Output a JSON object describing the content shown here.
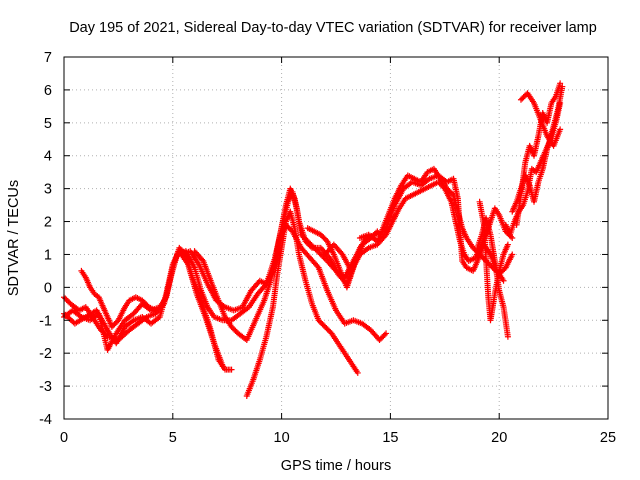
{
  "chart_data": {
    "type": "scatter",
    "title": "Day 195 of 2021, Sidereal Day-to-day VTEC variation (SDTVAR) for receiver lamp",
    "xlabel": "GPS time / hours",
    "ylabel": "SDTVAR / TECUs",
    "xlim": [
      0,
      25
    ],
    "ylim": [
      -4,
      7
    ],
    "xticks": [
      "0",
      "5",
      "10",
      "15",
      "20",
      "25"
    ],
    "yticks": [
      "-4",
      "-3",
      "-2",
      "-1",
      "0",
      "1",
      "2",
      "3",
      "4",
      "5",
      "6",
      "7"
    ],
    "grid": true,
    "marker": "+",
    "color": "#ff0000",
    "tracks": [
      [
        [
          0.0,
          -0.9
        ],
        [
          0.4,
          -0.7
        ],
        [
          0.8,
          -0.9
        ],
        [
          1.2,
          -1.0
        ],
        [
          1.6,
          -0.8
        ],
        [
          2.0,
          -1.9
        ],
        [
          2.4,
          -1.4
        ],
        [
          2.8,
          -1.0
        ],
        [
          3.2,
          -0.8
        ],
        [
          3.6,
          -0.5
        ],
        [
          4.0,
          -0.7
        ],
        [
          4.4,
          -0.6
        ],
        [
          4.7,
          -0.3
        ],
        [
          5.0,
          0.6
        ],
        [
          5.3,
          1.2
        ],
        [
          5.6,
          1.0
        ],
        [
          5.9,
          0.3
        ],
        [
          6.3,
          -0.4
        ],
        [
          6.7,
          -1.2
        ],
        [
          7.1,
          -2.2
        ],
        [
          7.4,
          -2.5
        ],
        [
          7.7,
          -2.5
        ]
      ],
      [
        [
          0.0,
          -0.8
        ],
        [
          0.5,
          -1.1
        ],
        [
          1.0,
          -0.9
        ],
        [
          1.5,
          -0.7
        ],
        [
          2.0,
          -1.3
        ],
        [
          2.4,
          -1.7
        ],
        [
          2.8,
          -1.2
        ],
        [
          3.2,
          -1.0
        ],
        [
          3.6,
          -0.9
        ],
        [
          4.0,
          -1.1
        ],
        [
          4.4,
          -0.9
        ],
        [
          4.7,
          -0.2
        ],
        [
          5.0,
          0.7
        ],
        [
          5.3,
          1.1
        ],
        [
          5.7,
          0.7
        ],
        [
          6.1,
          -0.2
        ],
        [
          6.5,
          -0.9
        ],
        [
          6.9,
          -1.7
        ],
        [
          7.3,
          -2.4
        ]
      ],
      [
        [
          0.0,
          -0.3
        ],
        [
          0.3,
          -0.5
        ],
        [
          0.7,
          -0.7
        ],
        [
          1.0,
          -0.6
        ],
        [
          1.3,
          -0.9
        ],
        [
          1.7,
          -1.3
        ],
        [
          2.0,
          -1.5
        ],
        [
          2.5,
          -1.6
        ],
        [
          3.0,
          -1.3
        ],
        [
          3.4,
          -1.1
        ],
        [
          3.8,
          -0.9
        ],
        [
          4.2,
          -0.8
        ],
        [
          4.6,
          -0.5
        ],
        [
          4.9,
          0.3
        ],
        [
          5.2,
          1.0
        ],
        [
          5.6,
          1.1
        ],
        [
          6.0,
          0.6
        ],
        [
          6.3,
          -0.1
        ],
        [
          6.6,
          -0.6
        ],
        [
          6.9,
          -0.9
        ],
        [
          7.3,
          -1.0
        ],
        [
          7.7,
          -1.0
        ],
        [
          8.1,
          -0.8
        ],
        [
          8.5,
          -0.6
        ],
        [
          8.9,
          -0.2
        ],
        [
          9.3,
          0.1
        ],
        [
          9.7,
          0.9
        ],
        [
          10.0,
          1.8
        ],
        [
          10.3,
          2.6
        ],
        [
          10.5,
          2.9
        ],
        [
          10.7,
          2.4
        ],
        [
          10.9,
          1.6
        ],
        [
          11.2,
          1.4
        ],
        [
          11.5,
          1.2
        ],
        [
          11.8,
          1.0
        ],
        [
          12.1,
          0.8
        ],
        [
          12.5,
          0.5
        ],
        [
          12.9,
          0.3
        ],
        [
          13.3,
          0.8
        ],
        [
          13.7,
          1.3
        ],
        [
          14.1,
          1.5
        ],
        [
          14.4,
          1.7
        ]
      ],
      [
        [
          5.4,
          1.0
        ],
        [
          5.8,
          1.1
        ],
        [
          6.2,
          0.7
        ],
        [
          6.6,
          0.1
        ],
        [
          7.0,
          -0.4
        ],
        [
          7.4,
          -0.6
        ],
        [
          7.8,
          -0.7
        ],
        [
          8.2,
          -0.6
        ],
        [
          8.6,
          -0.1
        ],
        [
          9.0,
          0.2
        ],
        [
          9.3,
          0.1
        ],
        [
          9.6,
          0.5
        ],
        [
          9.9,
          1.5
        ],
        [
          10.2,
          2.5
        ],
        [
          10.4,
          3.0
        ],
        [
          10.6,
          2.7
        ],
        [
          10.8,
          2.0
        ],
        [
          11.1,
          1.4
        ],
        [
          11.4,
          1.2
        ],
        [
          11.8,
          1.2
        ],
        [
          12.2,
          0.9
        ],
        [
          12.6,
          0.4
        ],
        [
          13.0,
          0.1
        ],
        [
          13.4,
          0.8
        ],
        [
          13.8,
          1.4
        ]
      ],
      [
        [
          6.0,
          1.1
        ],
        [
          6.4,
          0.8
        ],
        [
          6.8,
          0.1
        ],
        [
          7.1,
          -0.4
        ],
        [
          7.4,
          -0.9
        ],
        [
          7.7,
          -1.2
        ],
        [
          8.0,
          -1.4
        ],
        [
          8.4,
          -1.6
        ],
        [
          8.8,
          -1.0
        ],
        [
          9.2,
          -0.4
        ],
        [
          9.5,
          0.2
        ],
        [
          9.8,
          1.0
        ],
        [
          10.0,
          1.6
        ],
        [
          10.2,
          1.9
        ],
        [
          10.5,
          1.7
        ],
        [
          10.9,
          1.2
        ],
        [
          11.3,
          0.9
        ],
        [
          11.7,
          0.6
        ],
        [
          12.1,
          -0.1
        ],
        [
          12.5,
          -0.7
        ],
        [
          12.9,
          -1.1
        ],
        [
          13.3,
          -1.0
        ],
        [
          13.7,
          -1.1
        ],
        [
          14.1,
          -1.3
        ],
        [
          14.5,
          -1.6
        ],
        [
          14.8,
          -1.4
        ]
      ],
      [
        [
          8.4,
          -3.3
        ],
        [
          8.7,
          -2.8
        ],
        [
          9.0,
          -2.2
        ],
        [
          9.3,
          -1.5
        ],
        [
          9.6,
          -0.6
        ],
        [
          9.8,
          0.4
        ],
        [
          10.0,
          1.2
        ],
        [
          10.2,
          2.0
        ],
        [
          10.4,
          2.3
        ],
        [
          10.6,
          1.8
        ],
        [
          10.8,
          1.0
        ],
        [
          11.1,
          0.2
        ],
        [
          11.4,
          -0.5
        ],
        [
          11.7,
          -1.0
        ],
        [
          12.0,
          -1.2
        ],
        [
          12.3,
          -1.4
        ],
        [
          12.6,
          -1.7
        ],
        [
          12.9,
          -2.0
        ],
        [
          13.2,
          -2.3
        ],
        [
          13.5,
          -2.6
        ]
      ],
      [
        [
          11.2,
          1.8
        ],
        [
          11.5,
          1.7
        ],
        [
          11.8,
          1.6
        ],
        [
          12.1,
          1.4
        ],
        [
          12.4,
          1.0
        ],
        [
          12.7,
          0.5
        ],
        [
          13.0,
          0.0
        ],
        [
          13.3,
          0.6
        ],
        [
          13.6,
          1.2
        ],
        [
          13.9,
          1.5
        ],
        [
          14.3,
          1.6
        ],
        [
          14.6,
          1.7
        ],
        [
          14.9,
          2.2
        ],
        [
          15.2,
          2.7
        ],
        [
          15.5,
          3.1
        ],
        [
          15.8,
          3.4
        ],
        [
          16.1,
          3.3
        ],
        [
          16.4,
          3.2
        ],
        [
          16.7,
          3.5
        ],
        [
          17.0,
          3.6
        ],
        [
          17.3,
          3.3
        ],
        [
          17.6,
          3.0
        ],
        [
          17.9,
          2.8
        ],
        [
          18.1,
          2.3
        ],
        [
          18.3,
          1.8
        ],
        [
          18.5,
          1.5
        ],
        [
          18.8,
          1.2
        ],
        [
          19.1,
          1.0
        ],
        [
          19.4,
          0.8
        ],
        [
          19.7,
          0.6
        ],
        [
          20.0,
          0.4
        ],
        [
          20.3,
          0.6
        ],
        [
          20.6,
          1.0
        ]
      ],
      [
        [
          12.0,
          1.0
        ],
        [
          12.4,
          1.3
        ],
        [
          12.8,
          1.0
        ],
        [
          13.2,
          0.5
        ],
        [
          13.6,
          1.0
        ],
        [
          14.0,
          1.2
        ],
        [
          14.4,
          1.3
        ],
        [
          14.8,
          1.6
        ],
        [
          15.1,
          2.0
        ],
        [
          15.4,
          2.4
        ],
        [
          15.7,
          2.7
        ],
        [
          16.0,
          2.8
        ],
        [
          16.3,
          2.9
        ],
        [
          16.6,
          3.0
        ],
        [
          16.9,
          3.1
        ],
        [
          17.2,
          3.2
        ],
        [
          17.5,
          3.0
        ],
        [
          17.8,
          2.6
        ],
        [
          18.0,
          2.0
        ],
        [
          18.2,
          1.4
        ],
        [
          18.4,
          1.0
        ],
        [
          18.6,
          0.8
        ],
        [
          18.9,
          0.9
        ],
        [
          19.2,
          1.3
        ],
        [
          19.5,
          1.8
        ],
        [
          19.8,
          2.4
        ],
        [
          20.0,
          2.2
        ],
        [
          20.3,
          1.7
        ],
        [
          20.6,
          1.5
        ]
      ],
      [
        [
          13.6,
          1.5
        ],
        [
          14.0,
          1.6
        ],
        [
          14.4,
          1.4
        ],
        [
          14.8,
          1.8
        ],
        [
          15.2,
          2.5
        ],
        [
          15.6,
          3.0
        ],
        [
          16.0,
          3.2
        ],
        [
          16.4,
          3.1
        ],
        [
          16.8,
          3.3
        ],
        [
          17.2,
          3.4
        ],
        [
          17.6,
          3.2
        ],
        [
          17.9,
          3.3
        ],
        [
          18.1,
          2.7
        ],
        [
          18.3,
          0.8
        ],
        [
          18.5,
          0.6
        ],
        [
          18.8,
          0.5
        ],
        [
          19.0,
          0.8
        ],
        [
          19.3,
          1.3
        ],
        [
          19.6,
          1.0
        ],
        [
          19.9,
          0.5
        ],
        [
          20.2,
          0.2
        ]
      ],
      [
        [
          19.0,
          1.2
        ],
        [
          19.2,
          1.6
        ],
        [
          19.4,
          2.1
        ],
        [
          19.6,
          1.6
        ],
        [
          19.8,
          0.8
        ],
        [
          20.0,
          -0.1
        ],
        [
          20.2,
          -0.6
        ],
        [
          20.4,
          -1.5
        ]
      ],
      [
        [
          19.1,
          2.6
        ],
        [
          19.3,
          1.9
        ],
        [
          19.5,
          -0.3
        ],
        [
          19.6,
          -1.0
        ],
        [
          19.8,
          -0.2
        ],
        [
          20.0,
          0.5
        ],
        [
          20.2,
          1.0
        ],
        [
          20.4,
          1.3
        ]
      ],
      [
        [
          20.3,
          1.9
        ],
        [
          20.5,
          1.6
        ],
        [
          20.7,
          2.0
        ],
        [
          20.9,
          2.3
        ],
        [
          21.1,
          2.5
        ],
        [
          21.3,
          2.9
        ],
        [
          21.5,
          3.6
        ],
        [
          21.7,
          3.5
        ],
        [
          21.9,
          3.8
        ],
        [
          22.1,
          4.1
        ],
        [
          22.3,
          4.4
        ],
        [
          22.5,
          4.9
        ],
        [
          22.7,
          5.4
        ],
        [
          22.9,
          6.1
        ]
      ],
      [
        [
          20.6,
          2.3
        ],
        [
          20.8,
          2.6
        ],
        [
          21.0,
          3.0
        ],
        [
          21.2,
          3.4
        ],
        [
          21.4,
          3.1
        ],
        [
          21.6,
          2.6
        ],
        [
          21.8,
          3.2
        ],
        [
          22.0,
          3.6
        ],
        [
          22.2,
          4.2
        ],
        [
          22.4,
          4.6
        ],
        [
          22.6,
          5.0
        ],
        [
          22.8,
          5.6
        ]
      ],
      [
        [
          20.8,
          1.9
        ],
        [
          21.0,
          2.8
        ],
        [
          21.2,
          3.8
        ],
        [
          21.4,
          4.3
        ],
        [
          21.6,
          4.0
        ],
        [
          21.8,
          4.6
        ],
        [
          22.0,
          5.3
        ],
        [
          22.2,
          5.0
        ],
        [
          22.4,
          5.6
        ],
        [
          22.6,
          5.8
        ],
        [
          22.8,
          6.2
        ]
      ],
      [
        [
          21.0,
          5.7
        ],
        [
          21.3,
          5.9
        ],
        [
          21.6,
          5.6
        ],
        [
          21.9,
          5.1
        ],
        [
          22.2,
          4.6
        ],
        [
          22.5,
          4.3
        ],
        [
          22.8,
          4.8
        ]
      ],
      [
        [
          0.8,
          0.5
        ],
        [
          1.0,
          0.3
        ],
        [
          1.2,
          0.0
        ],
        [
          1.4,
          -0.2
        ],
        [
          1.6,
          -0.3
        ],
        [
          1.8,
          -0.6
        ],
        [
          2.0,
          -0.9
        ],
        [
          2.2,
          -1.2
        ],
        [
          2.5,
          -1.0
        ],
        [
          2.8,
          -0.6
        ],
        [
          3.0,
          -0.4
        ],
        [
          3.3,
          -0.3
        ],
        [
          3.6,
          -0.4
        ],
        [
          3.9,
          -0.6
        ],
        [
          4.2,
          -0.7
        ]
      ]
    ]
  }
}
